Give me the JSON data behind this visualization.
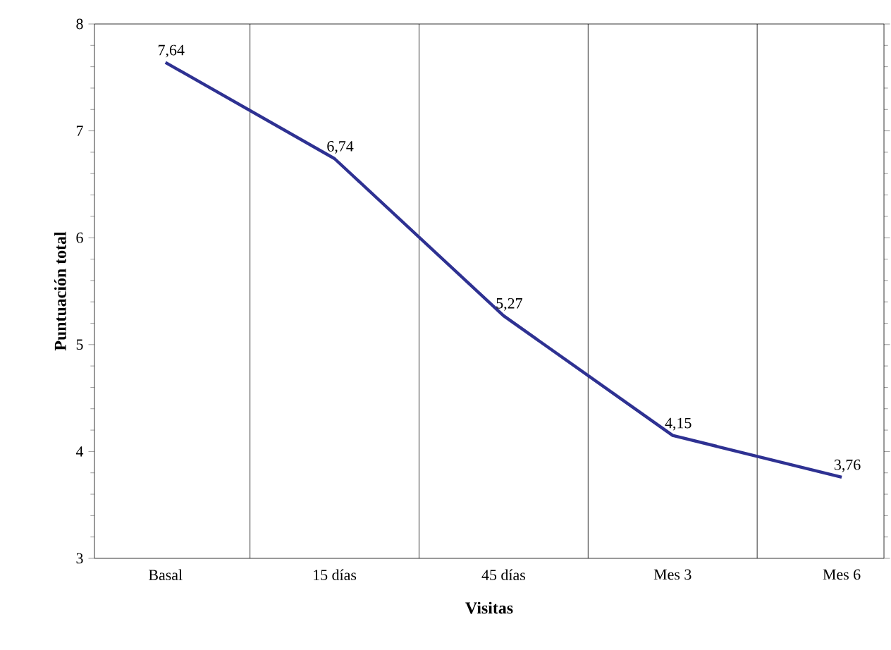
{
  "chart_data": {
    "type": "line",
    "xlabel": "Visitas",
    "ylabel": "Puntuación total",
    "categories": [
      "Basal",
      "15 días",
      "45 días",
      "Mes 3",
      "Mes 6"
    ],
    "values": [
      7.64,
      6.74,
      5.27,
      4.15,
      3.76
    ],
    "value_labels": [
      "7,64",
      "6,74",
      "5,27",
      "4,15",
      "3,76"
    ],
    "color": "#2e3192",
    "ylim": [
      3,
      8
    ],
    "yticks": [
      3,
      4,
      5,
      6,
      7,
      8
    ],
    "grid": "x",
    "marker": "none",
    "line_style": "solid"
  }
}
